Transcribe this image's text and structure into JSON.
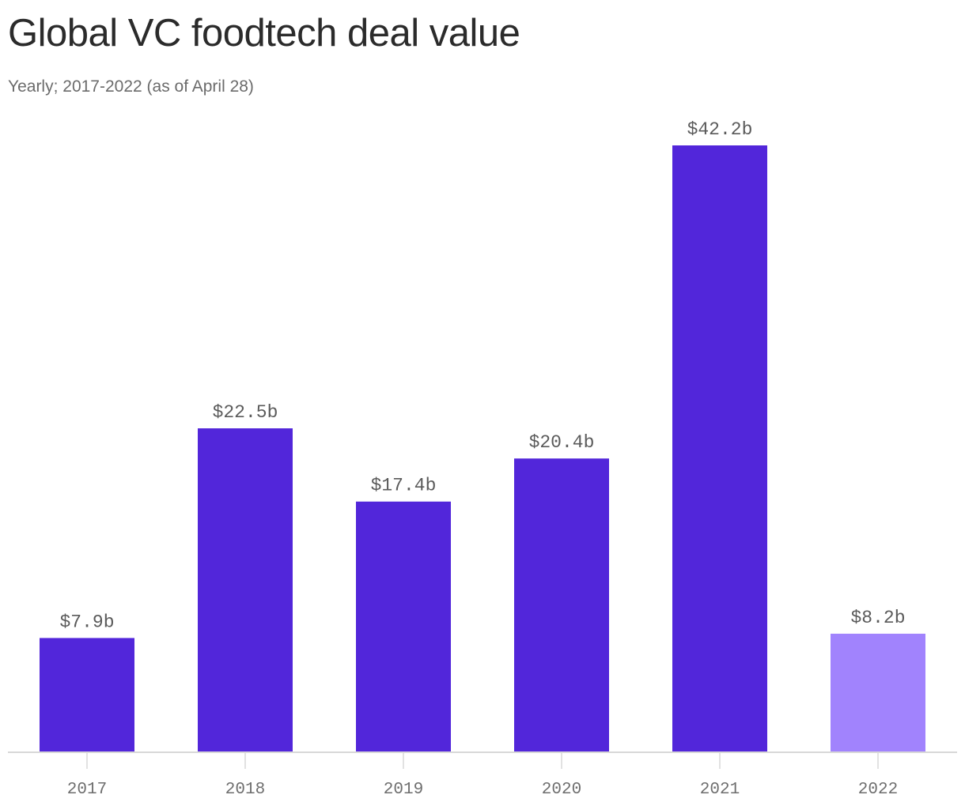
{
  "chart_data": {
    "type": "bar",
    "title": "Global VC foodtech deal value",
    "subtitle": "Yearly; 2017-2022 (as of April 28)",
    "categories": [
      "2017",
      "2018",
      "2019",
      "2020",
      "2021",
      "2022"
    ],
    "values": [
      7.9,
      22.5,
      17.4,
      20.4,
      42.2,
      8.2
    ],
    "value_labels": [
      "$7.9b",
      "$22.5b",
      "$17.4b",
      "$20.4b",
      "$42.2b",
      "$8.2b"
    ],
    "xlabel": "",
    "ylabel": "",
    "ylim": [
      0,
      42.2
    ],
    "grid": false,
    "colors": {
      "bar": "#5226da",
      "bar_partial_year": "#a183fd",
      "axis": "#d8d8d8",
      "tick_label": "#6e6e6e",
      "value_label": "#5a5a5a"
    }
  }
}
